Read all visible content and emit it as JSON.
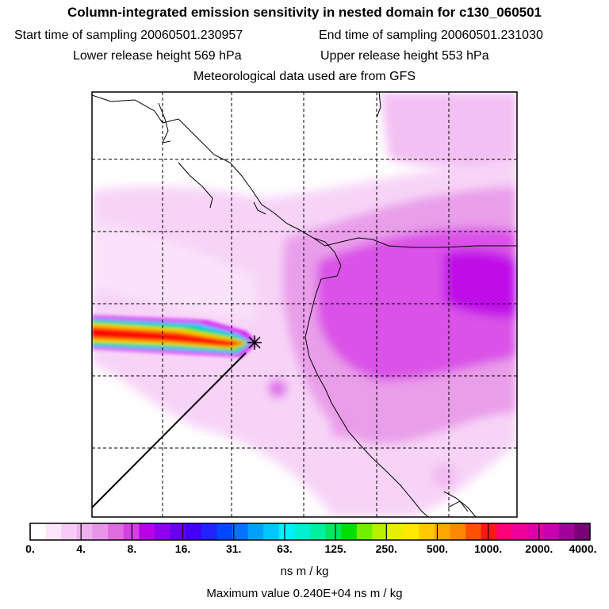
{
  "header": {
    "title": "Column-integrated emission sensitivity in nested domain for c130_060501",
    "start_label": "Start time of sampling 20060501.230957",
    "end_label": "End time of sampling 20060501.231030",
    "lower_label": "Lower release height  569 hPa",
    "upper_label": "Upper release height  553 hPa",
    "met_label": "Meteorological data used are from GFS"
  },
  "colorbar": {
    "tick_labels": [
      "0.",
      "4.",
      "8.",
      "16.",
      "31.",
      "63.",
      "125.",
      "250.",
      "500.",
      "1000.",
      "2000.",
      "4000."
    ],
    "colors": [
      "#ffffff",
      "#fbe6fb",
      "#f6ccf6",
      "#efb0ef",
      "#e895e8",
      "#df6cdf",
      "#d63fe6",
      "#b800e8",
      "#9000ee",
      "#6a00f0",
      "#4400f6",
      "#2222ff",
      "#0048ff",
      "#0074ff",
      "#00a0ff",
      "#00c8ff",
      "#00f0ff",
      "#00f0d0",
      "#00f0a0",
      "#00e860",
      "#00e000",
      "#70f000",
      "#b8f000",
      "#e8f000",
      "#ffe800",
      "#ffc800",
      "#ffa800",
      "#ff8800",
      "#ff5000",
      "#ff1818",
      "#ff0078",
      "#f0009a",
      "#dd00a8",
      "#c600b0",
      "#a4009c",
      "#7a0078"
    ],
    "units": "ns m / kg"
  },
  "footer": {
    "max_value": "Maximum value  0.240E+04 ns m / kg"
  },
  "map": {
    "release_point_marker": "star-icon",
    "plume_colors": [
      "#ff0000",
      "#ff6a00",
      "#ffe000",
      "#00e000",
      "#00c8ff",
      "#d500f9"
    ],
    "sensitivity_colors": [
      "#f6ccf6",
      "#e895e8",
      "#d63fe6",
      "#b800e8"
    ]
  }
}
